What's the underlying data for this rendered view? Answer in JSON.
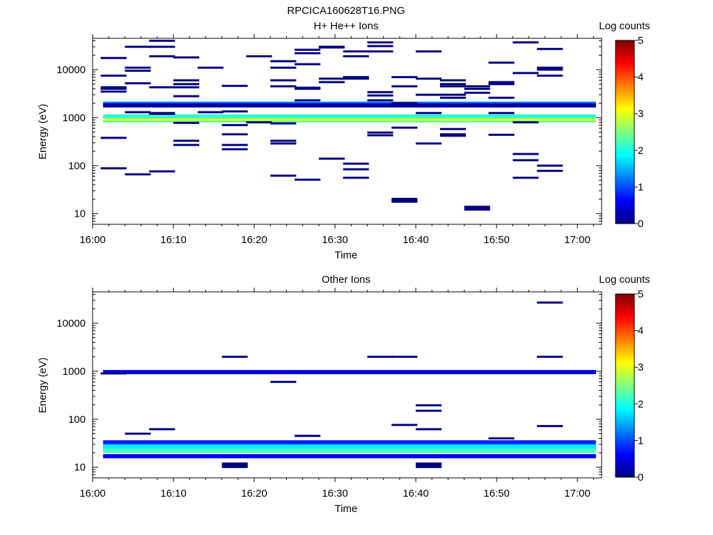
{
  "figure": {
    "title": "RPCICA160628T16.PNG"
  },
  "chart_data": [
    {
      "type": "heatmap",
      "title": "H+ He++ Ions",
      "xlabel": "Time",
      "ylabel": "Energy (eV)",
      "xlim": [
        "16:00",
        "17:03"
      ],
      "ylim": [
        6,
        45000
      ],
      "yscale": "log",
      "grid": false,
      "x_ticks": [
        "16:00",
        "16:10",
        "16:20",
        "16:30",
        "16:40",
        "16:50",
        "17:00"
      ],
      "y_ticks": [
        "10",
        "100",
        "1000",
        "10000"
      ],
      "colorbar": {
        "label": "Log counts",
        "range": [
          0,
          5
        ],
        "ticks": [
          "0",
          "1",
          "2",
          "3",
          "4",
          "5"
        ]
      },
      "bands": [
        {
          "y": 880,
          "value": 2.3
        },
        {
          "y": 960,
          "value": 3.1
        },
        {
          "y": 1060,
          "value": 2.1
        },
        {
          "y": 1950,
          "value": 1.2
        },
        {
          "y": 1800,
          "value": 0.2
        }
      ],
      "time_bins": [
        {
          "t": "16:01",
          "energies": [
            17500,
            7500,
            4300,
            4000,
            3500,
            380,
            88
          ]
        },
        {
          "t": "16:04",
          "energies": [
            30000,
            11000,
            9500,
            5200,
            1300,
            66
          ]
        },
        {
          "t": "16:07",
          "energies": [
            40000,
            30000,
            19000,
            4300,
            1250,
            1200,
            76
          ]
        },
        {
          "t": "16:10",
          "energies": [
            18000,
            6000,
            5000,
            4300,
            2800,
            780,
            330,
            270
          ]
        },
        {
          "t": "16:13",
          "energies": [
            11000,
            1300
          ]
        },
        {
          "t": "16:16",
          "energies": [
            4600,
            1350,
            700,
            450,
            270,
            220
          ]
        },
        {
          "t": "16:19",
          "energies": [
            19000,
            800
          ]
        },
        {
          "t": "16:22",
          "energies": [
            15000,
            11000,
            6000,
            4500,
            760,
            330,
            290,
            62
          ]
        },
        {
          "t": "16:25",
          "energies": [
            26000,
            22000,
            13000,
            4200,
            4000,
            2300,
            51
          ]
        },
        {
          "t": "16:28",
          "energies": [
            30000,
            29000,
            6500,
            5500,
            140
          ]
        },
        {
          "t": "16:31",
          "energies": [
            24000,
            19000,
            7000,
            6500,
            110,
            84,
            56
          ]
        },
        {
          "t": "16:34",
          "energies": [
            37000,
            31000,
            24000,
            3400,
            2900,
            2300,
            490,
            430
          ]
        },
        {
          "t": "16:37",
          "energies": [
            7000,
            4500,
            2000,
            620,
            19
          ]
        },
        {
          "t": "16:40",
          "energies": [
            24000,
            6500,
            3000,
            1250,
            290
          ]
        },
        {
          "t": "16:43",
          "energies": [
            6000,
            5000,
            4500,
            3000,
            2600,
            580,
            450,
            420
          ]
        },
        {
          "t": "16:46",
          "energies": [
            4500,
            4000,
            3300,
            13
          ]
        },
        {
          "t": "16:49",
          "energies": [
            14000,
            5500,
            5000,
            2600,
            1250,
            440
          ]
        },
        {
          "t": "16:52",
          "energies": [
            37000,
            8500,
            800,
            175,
            130,
            56
          ]
        },
        {
          "t": "16:55",
          "energies": [
            27000,
            11000,
            10000,
            7500,
            100,
            78
          ]
        }
      ]
    },
    {
      "type": "heatmap",
      "title": "Other Ions",
      "xlabel": "Time",
      "ylabel": "Energy (eV)",
      "xlim": [
        "16:00",
        "17:03"
      ],
      "ylim": [
        6,
        45000
      ],
      "yscale": "log",
      "grid": false,
      "x_ticks": [
        "16:00",
        "16:10",
        "16:20",
        "16:30",
        "16:40",
        "16:50",
        "17:00"
      ],
      "y_ticks": [
        "10",
        "100",
        "1000",
        "10000"
      ],
      "colorbar": {
        "label": "Log counts",
        "range": [
          0,
          5
        ],
        "ticks": [
          "0",
          "1",
          "2",
          "3",
          "4",
          "5"
        ]
      },
      "bands": [
        {
          "y": 960,
          "value": 0.5
        },
        {
          "y": 33,
          "value": 0.8
        },
        {
          "y": 27,
          "value": 1.8
        },
        {
          "y": 22,
          "value": 2.2
        },
        {
          "y": 17,
          "value": 0.6
        }
      ],
      "time_bins": [
        {
          "t": "16:01",
          "energies": [
            900
          ]
        },
        {
          "t": "16:04",
          "energies": [
            50
          ]
        },
        {
          "t": "16:07",
          "energies": [
            62
          ]
        },
        {
          "t": "16:16",
          "energies": [
            2000,
            11
          ]
        },
        {
          "t": "16:22",
          "energies": [
            600
          ]
        },
        {
          "t": "16:25",
          "energies": [
            45
          ]
        },
        {
          "t": "16:34",
          "energies": [
            2000
          ]
        },
        {
          "t": "16:37",
          "energies": [
            2000,
            76
          ]
        },
        {
          "t": "16:40",
          "energies": [
            195,
            150,
            62,
            11
          ]
        },
        {
          "t": "16:49",
          "energies": [
            40
          ]
        },
        {
          "t": "16:55",
          "energies": [
            27000,
            2000,
            72
          ]
        }
      ]
    }
  ]
}
